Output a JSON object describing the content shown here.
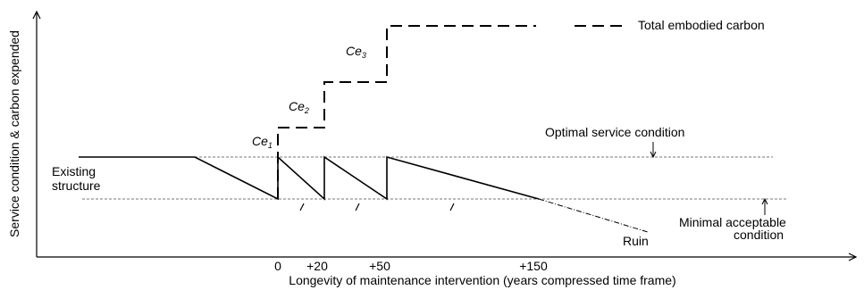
{
  "axes": {
    "y_label": "Service condition & carbon expended",
    "x_label": "Longevity of maintenance intervention (years compressed time frame)",
    "x_ticks": [
      "0",
      "+20",
      "+50",
      "+150"
    ]
  },
  "labels": {
    "total": "Total embodied carbon",
    "optimal": "Optimal service condition",
    "existing_line1": "Existing",
    "existing_line2": "structure",
    "minimal_line1": "Minimal acceptable",
    "minimal_line2": "condition",
    "ruin": "Ruin"
  },
  "carbon_steps": [
    {
      "base": "Ce",
      "sub": "1"
    },
    {
      "base": "Ce",
      "sub": "2"
    },
    {
      "base": "Ce",
      "sub": "3"
    }
  ]
}
